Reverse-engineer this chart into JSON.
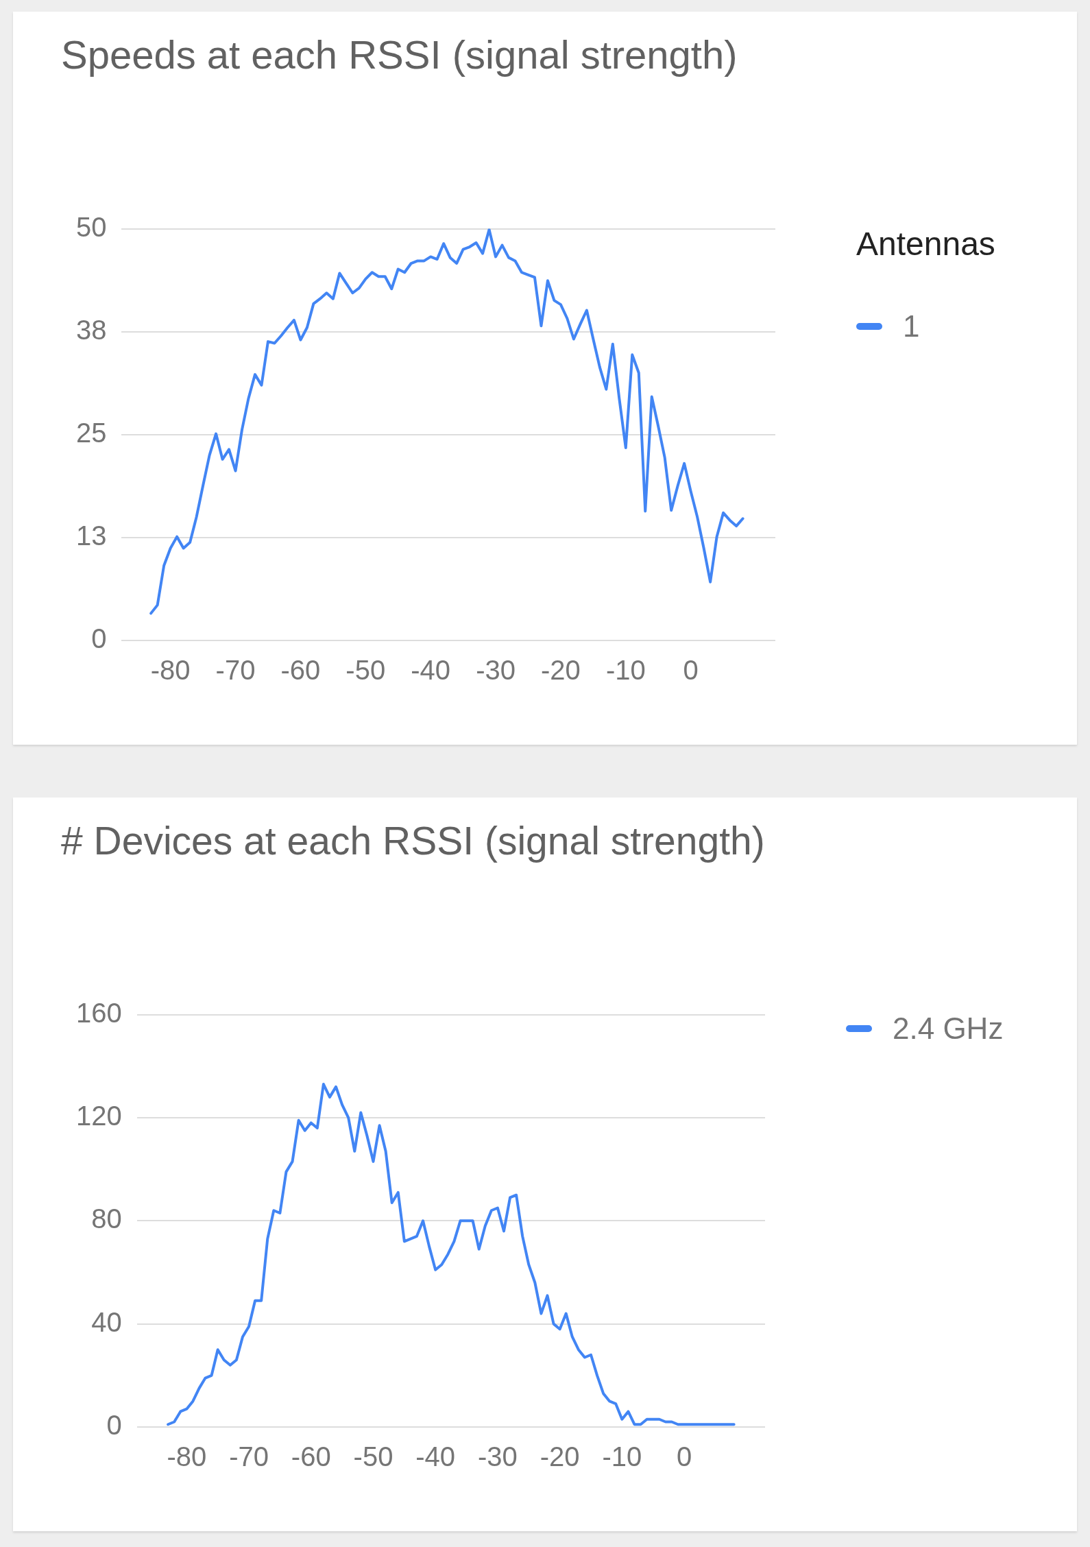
{
  "chart_data": [
    {
      "type": "line",
      "title": "Speeds at each RSSI (signal strength)",
      "legend_title": "Antennas",
      "legend": "top right",
      "grid": "y",
      "marker": "none",
      "line_style": "solid",
      "x": [
        -83,
        -82,
        -81,
        -80,
        -79,
        -78,
        -77,
        -76,
        -75,
        -74,
        -73,
        -72,
        -71,
        -70,
        -69,
        -68,
        -67,
        -66,
        -65,
        -64,
        -63,
        -62,
        -61,
        -60,
        -59,
        -58,
        -57,
        -56,
        -55,
        -54,
        -53,
        -52,
        -51,
        -50,
        -49,
        -48,
        -47,
        -46,
        -45,
        -44,
        -43,
        -42,
        -41,
        -40,
        -39,
        -38,
        -37,
        -36,
        -35,
        -34,
        -33,
        -32,
        -31,
        -30,
        -29,
        -28,
        -27,
        -26,
        -25,
        -24,
        -23,
        -22,
        -21,
        -20,
        -19,
        -18,
        -17,
        -16,
        -15,
        -14,
        -13,
        -12,
        -11,
        -10,
        -9,
        -8,
        -7,
        -6,
        -5,
        -4,
        -3,
        -2,
        -1,
        0,
        1,
        2,
        3,
        4,
        5,
        6,
        7,
        8
      ],
      "series": [
        {
          "name": "1",
          "color": "#4285f4",
          "values": [
            3.3,
            4.3,
            9.1,
            11.2,
            12.6,
            11.2,
            11.9,
            15,
            18.8,
            22.5,
            25.1,
            22,
            23.2,
            20.6,
            25.6,
            29.4,
            32.3,
            31,
            36.3,
            36.1,
            37,
            38,
            38.9,
            36.5,
            38,
            40.9,
            41.5,
            42.2,
            41.5,
            44.6,
            43.4,
            42.2,
            42.8,
            43.9,
            44.7,
            44.2,
            44.2,
            42.7,
            45.1,
            44.7,
            45.8,
            46.1,
            46.1,
            46.6,
            46.3,
            48.2,
            46.5,
            45.8,
            47.5,
            47.8,
            48.3,
            47,
            49.9,
            46.6,
            48,
            46.5,
            46.1,
            44.7,
            44.4,
            44.1,
            38.2,
            43.7,
            41.3,
            40.8,
            39.1,
            36.6,
            38.4,
            40.1,
            36.6,
            33.2,
            30.5,
            36,
            29.4,
            23.4,
            34.7,
            32.5,
            15.7,
            29.6,
            26,
            22.2,
            15.8,
            18.8,
            21.5,
            18.1,
            15,
            11.2,
            7.1,
            12.6,
            15.5,
            14.6,
            13.9,
            14.8
          ]
        }
      ],
      "xlim": [
        -87.5,
        13
      ],
      "xticks": [
        -80,
        -70,
        -60,
        -50,
        -40,
        -30,
        -20,
        -10,
        0
      ],
      "ylim": [
        0,
        50
      ],
      "yticks": [
        0,
        {
          "value": 12.5,
          "label": "13"
        },
        25,
        {
          "value": 37.5,
          "label": "38"
        },
        50
      ]
    },
    {
      "type": "line",
      "title": "# Devices at each RSSI (signal strength)",
      "legend": "top right",
      "grid": "y",
      "marker": "none",
      "line_style": "solid",
      "x": [
        -83,
        -82,
        -81,
        -80,
        -79,
        -78,
        -77,
        -76,
        -75,
        -74,
        -73,
        -72,
        -71,
        -70,
        -69,
        -68,
        -67,
        -66,
        -65,
        -64,
        -63,
        -62,
        -61,
        -60,
        -59,
        -58,
        -57,
        -56,
        -55,
        -54,
        -53,
        -52,
        -51,
        -50,
        -49,
        -48,
        -47,
        -46,
        -45,
        -44,
        -43,
        -42,
        -41,
        -40,
        -39,
        -38,
        -37,
        -36,
        -35,
        -34,
        -33,
        -32,
        -31,
        -30,
        -29,
        -28,
        -27,
        -26,
        -25,
        -24,
        -23,
        -22,
        -21,
        -20,
        -19,
        -18,
        -17,
        -16,
        -15,
        -14,
        -13,
        -12,
        -11,
        -10,
        -9,
        -8,
        -7,
        -6,
        -5,
        -4,
        -3,
        -2,
        -1,
        0,
        1,
        2,
        3,
        4,
        5,
        6,
        7,
        8
      ],
      "series": [
        {
          "name": "2.4 GHz",
          "color": "#4285f4",
          "values": [
            1,
            2,
            6,
            7,
            10,
            15,
            19,
            20,
            30,
            26,
            24,
            26,
            35,
            39,
            49,
            49,
            73,
            84,
            83,
            99,
            103,
            119,
            115,
            118,
            116,
            133,
            128,
            132,
            125,
            120,
            107,
            122,
            113,
            103,
            117,
            107,
            87,
            91,
            72,
            73,
            74,
            80,
            70,
            61,
            63,
            67,
            72,
            80,
            80,
            80,
            69,
            78,
            84,
            85,
            76,
            89,
            90,
            74,
            63,
            56,
            44,
            51,
            40,
            38,
            44,
            35,
            30,
            27,
            28,
            20,
            13,
            10,
            9,
            3,
            6,
            1,
            1,
            3,
            3,
            3,
            2,
            2,
            1,
            1,
            1,
            1,
            1,
            1,
            1,
            1,
            1,
            1
          ]
        }
      ],
      "xlim": [
        -88,
        13
      ],
      "xticks": [
        -80,
        -70,
        -60,
        -50,
        -40,
        -30,
        -20,
        -10,
        0
      ],
      "ylim": [
        0,
        160
      ],
      "yticks": [
        0,
        40,
        80,
        120,
        160
      ]
    }
  ]
}
